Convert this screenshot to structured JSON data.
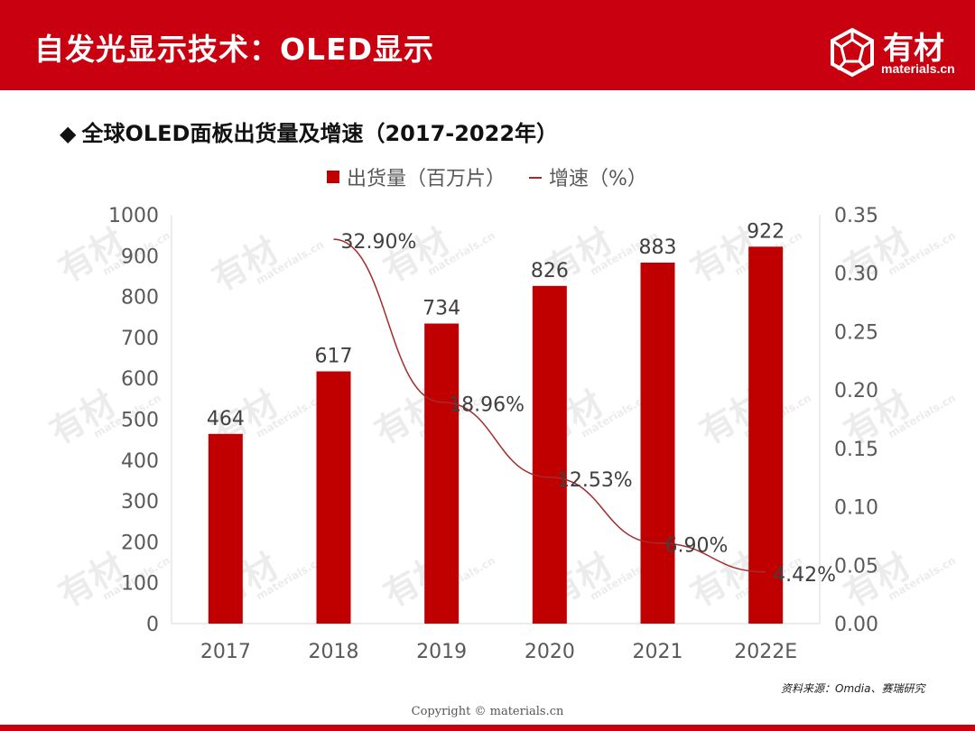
{
  "header": {
    "title": "自发光显示技术：OLED显示",
    "logo_name": "有材",
    "logo_sub": "materials.cn"
  },
  "subtitle": "全球OLED面板出货量及增速（2017-2022年）",
  "subtitle_bullet": "◆",
  "source": "资料来源：Omdia、赛瑞研究",
  "copyright": "Copyright © materials.cn",
  "watermark": {
    "name": "有材",
    "sub": "materials.cn"
  },
  "colors": {
    "brand": "#c8000f",
    "bar": "#c00000",
    "line": "#a52a2a"
  },
  "chart_data": {
    "type": "bar",
    "title": "全球OLED面板出货量及增速（2017-2022年）",
    "categories": [
      "2017",
      "2018",
      "2019",
      "2020",
      "2021",
      "2022E"
    ],
    "series": [
      {
        "name": "出货量（百万片）",
        "type": "bar",
        "axis": "left",
        "values": [
          464,
          617,
          734,
          826,
          883,
          922
        ],
        "labels": [
          "464",
          "617",
          "734",
          "826",
          "883",
          "922"
        ]
      },
      {
        "name": "增速（%）",
        "type": "line",
        "axis": "right",
        "values": [
          null,
          0.329,
          0.1896,
          0.1253,
          0.069,
          0.0442
        ],
        "labels": [
          "",
          "32.90%",
          "18.96%",
          "12.53%",
          "6.90%",
          "4.42%"
        ]
      }
    ],
    "y_left": {
      "min": 0,
      "max": 1000,
      "ticks": [
        "0",
        "100",
        "200",
        "300",
        "400",
        "500",
        "600",
        "700",
        "800",
        "900",
        "1000"
      ]
    },
    "y_right": {
      "min": 0,
      "max": 0.35,
      "ticks": [
        "0.00",
        "0.05",
        "0.10",
        "0.15",
        "0.20",
        "0.25",
        "0.30",
        "0.35"
      ]
    },
    "legend_position": "top-center",
    "grid": false
  }
}
